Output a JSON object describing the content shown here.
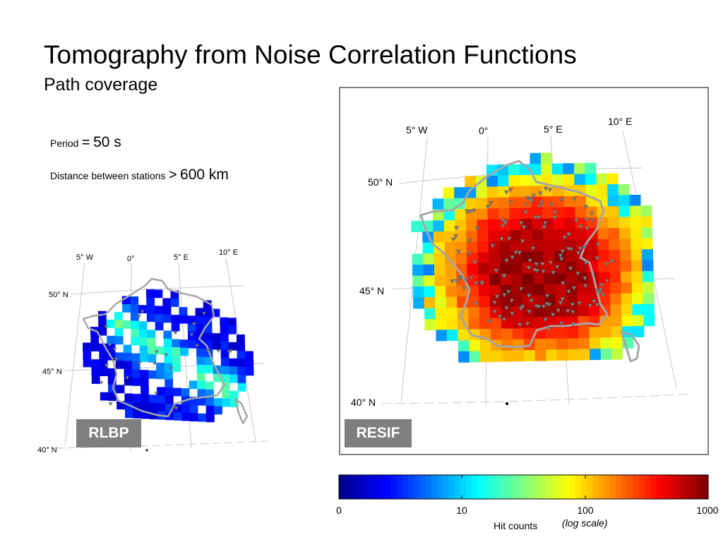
{
  "slide": {
    "title": "Tomography from Noise Correlation Functions",
    "subtitle": "Path coverage"
  },
  "parameters": {
    "period_label": "Period",
    "period_equals": "=",
    "period_value": "50 s",
    "distance_label": "Distance between stations",
    "distance_comparator": ">",
    "distance_value": "600 km"
  },
  "maps": {
    "left": {
      "name": "RLBP",
      "lon_labels": [
        "5° W",
        "0°",
        "5° E",
        "10° E"
      ],
      "lat_labels": [
        "50° N",
        "45° N",
        "40° N"
      ]
    },
    "right": {
      "name": "RESIF",
      "lon_labels": [
        "5° W",
        "0°",
        "5° E",
        "10° E"
      ],
      "lat_labels": [
        "50° N",
        "45° N",
        "40° N"
      ]
    }
  },
  "colorbar": {
    "colormap": "jet",
    "scale": "log",
    "ticks": [
      "0",
      "10",
      "100",
      "1000"
    ],
    "label": "Hit counts",
    "scale_note": "(log scale)",
    "colors": [
      "#00008f",
      "#0000ff",
      "#0080ff",
      "#00ffff",
      "#80ff80",
      "#ffff00",
      "#ff8000",
      "#ff0000",
      "#800000"
    ]
  },
  "accent_colors": {
    "badge_bg": "#7f7f7f",
    "coastline": "#a6a6a6",
    "station_marker": "#7f7f7f",
    "graticule": "#c8c8c8"
  }
}
